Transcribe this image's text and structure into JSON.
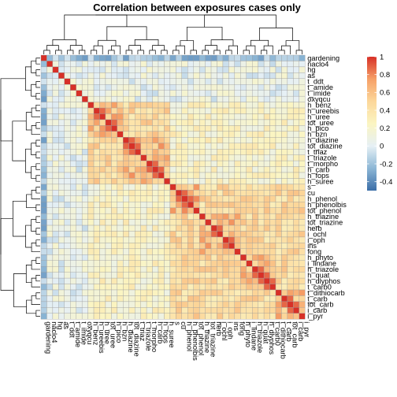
{
  "chart_data": {
    "type": "heatmap",
    "title": "Correlation between exposures cases only",
    "variables": [
      "gardening",
      "naclo4",
      "hg",
      "as",
      "t_ddt",
      "t_amide",
      "t_imide",
      "oxyqcu",
      "h_benz",
      "h_ureebis",
      "h_uree",
      "tot_uree",
      "h_pico",
      "h_bzn",
      "h_diazine",
      "tot_diazine",
      "t_triaz",
      "t_triazole",
      "t_morpho",
      "h_carb",
      "h_fops",
      "h_suree",
      "s",
      "cu",
      "h_phenol",
      "h_phenolbis",
      "tot_phenol",
      "h_triazine",
      "tot_triazine",
      "herb",
      "i_ochl",
      "i_oph",
      "ins",
      "fong",
      "h_phyto",
      "i_lindane",
      "h_triazole",
      "h_quat",
      "h_dlyphos",
      "t_carb0",
      "t_dithiocarb",
      "t_carb",
      "tot_carb",
      "i_carb",
      "i_pyr"
    ],
    "groups": [
      0,
      0,
      0,
      0,
      0,
      0,
      0,
      0,
      1,
      1,
      1,
      1,
      1,
      1,
      2,
      2,
      2,
      2,
      2,
      2,
      2,
      2,
      3,
      3,
      3,
      3,
      3,
      4,
      4,
      4,
      4,
      4,
      4,
      4,
      5,
      5,
      5,
      5,
      5,
      5,
      6,
      6,
      6,
      6,
      6
    ],
    "legend": {
      "ticks": [
        1,
        0.8,
        0.6,
        0.4,
        0.2,
        0,
        -0.2,
        -0.4
      ],
      "range": [
        -0.5,
        1
      ],
      "colors": [
        "#3b6ea8",
        "#8db7d6",
        "#e6f0f5",
        "#fbf5c2",
        "#fcd79a",
        "#f6a067",
        "#d73027"
      ]
    }
  }
}
